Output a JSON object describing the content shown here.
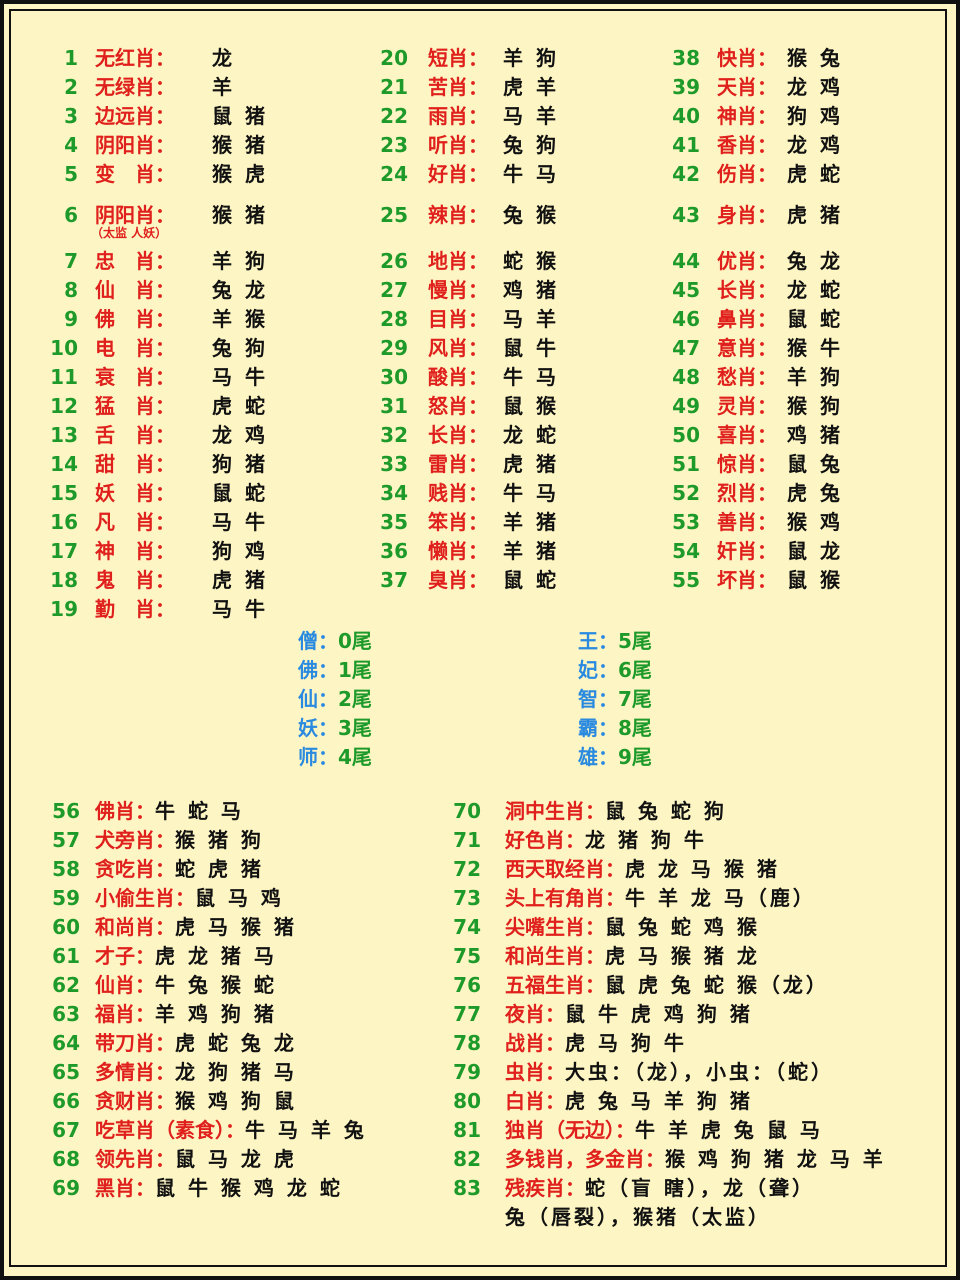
{
  "col1": [
    {
      "num": "1",
      "label": "无红肖：",
      "value": "龙"
    },
    {
      "num": "2",
      "label": "无绿肖：",
      "value": "羊"
    },
    {
      "num": "3",
      "label": "边远肖：",
      "value": "鼠 猪"
    },
    {
      "num": "4",
      "label": "阴阳肖：",
      "value": "猴 猪"
    },
    {
      "num": "5",
      "label": "变　肖：",
      "value": "猴 虎"
    },
    {
      "num": "6",
      "label": "阴阳肖：",
      "value": "猴 猪",
      "note": "（太监 人妖）"
    },
    {
      "num": "7",
      "label": "忠　肖：",
      "value": "羊 狗"
    },
    {
      "num": "8",
      "label": "仙　肖：",
      "value": "兔 龙"
    },
    {
      "num": "9",
      "label": "佛　肖：",
      "value": "羊 猴"
    },
    {
      "num": "10",
      "label": "电　肖：",
      "value": "兔 狗"
    },
    {
      "num": "11",
      "label": "衰　肖：",
      "value": "马 牛"
    },
    {
      "num": "12",
      "label": "猛　肖：",
      "value": "虎 蛇"
    },
    {
      "num": "13",
      "label": "舌　肖：",
      "value": "龙 鸡"
    },
    {
      "num": "14",
      "label": "甜　肖：",
      "value": "狗 猪"
    },
    {
      "num": "15",
      "label": "妖　肖：",
      "value": "鼠 蛇"
    },
    {
      "num": "16",
      "label": "凡　肖：",
      "value": "马 牛"
    },
    {
      "num": "17",
      "label": "神　肖：",
      "value": "狗 鸡"
    },
    {
      "num": "18",
      "label": "鬼　肖：",
      "value": "虎 猪"
    },
    {
      "num": "19",
      "label": "勤　肖：",
      "value": "马 牛"
    }
  ],
  "col2": [
    {
      "num": "20",
      "label": "短肖：",
      "value": "羊 狗"
    },
    {
      "num": "21",
      "label": "苦肖：",
      "value": "虎 羊"
    },
    {
      "num": "22",
      "label": "雨肖：",
      "value": "马 羊"
    },
    {
      "num": "23",
      "label": "听肖：",
      "value": "兔 狗"
    },
    {
      "num": "24",
      "label": "好肖：",
      "value": "牛 马"
    },
    {
      "num": "25",
      "label": "辣肖：",
      "value": "兔 猴"
    },
    {
      "num": "26",
      "label": "地肖：",
      "value": "蛇 猴"
    },
    {
      "num": "27",
      "label": "慢肖：",
      "value": "鸡 猪"
    },
    {
      "num": "28",
      "label": "目肖：",
      "value": "马 羊"
    },
    {
      "num": "29",
      "label": "风肖：",
      "value": "鼠 牛"
    },
    {
      "num": "30",
      "label": "酸肖：",
      "value": "牛 马"
    },
    {
      "num": "31",
      "label": "怒肖：",
      "value": "鼠 猴"
    },
    {
      "num": "32",
      "label": "长肖：",
      "value": "龙 蛇"
    },
    {
      "num": "33",
      "label": "雷肖：",
      "value": "虎 猪"
    },
    {
      "num": "34",
      "label": "贱肖：",
      "value": "牛 马"
    },
    {
      "num": "35",
      "label": "笨肖：",
      "value": "羊 猪"
    },
    {
      "num": "36",
      "label": "懒肖：",
      "value": "羊 猪"
    },
    {
      "num": "37",
      "label": "臭肖：",
      "value": "鼠 蛇"
    }
  ],
  "col3": [
    {
      "num": "38",
      "label": "快肖：",
      "value": "猴 兔"
    },
    {
      "num": "39",
      "label": "天肖：",
      "value": "龙 鸡"
    },
    {
      "num": "40",
      "label": "神肖：",
      "value": "狗 鸡"
    },
    {
      "num": "41",
      "label": "香肖：",
      "value": "龙 鸡"
    },
    {
      "num": "42",
      "label": "伤肖：",
      "value": "虎 蛇"
    },
    {
      "num": "43",
      "label": "身肖：",
      "value": "虎 猪"
    },
    {
      "num": "44",
      "label": "优肖：",
      "value": "兔 龙"
    },
    {
      "num": "45",
      "label": "长肖：",
      "value": "龙 蛇"
    },
    {
      "num": "46",
      "label": "鼻肖：",
      "value": "鼠 蛇"
    },
    {
      "num": "47",
      "label": "意肖：",
      "value": "猴 牛"
    },
    {
      "num": "48",
      "label": "愁肖：",
      "value": "羊 狗"
    },
    {
      "num": "49",
      "label": "灵肖：",
      "value": "猴 狗"
    },
    {
      "num": "50",
      "label": "喜肖：",
      "value": "鸡 猪"
    },
    {
      "num": "51",
      "label": "惊肖：",
      "value": "鼠 兔"
    },
    {
      "num": "52",
      "label": "烈肖：",
      "value": "虎 兔"
    },
    {
      "num": "53",
      "label": "善肖：",
      "value": "猴 鸡"
    },
    {
      "num": "54",
      "label": "奸肖：",
      "value": "鼠 龙"
    },
    {
      "num": "55",
      "label": "坏肖：",
      "value": "鼠 猴"
    }
  ],
  "tails_left": [
    {
      "label": "僧：",
      "value": "0尾"
    },
    {
      "label": "佛：",
      "value": "1尾"
    },
    {
      "label": "仙：",
      "value": "2尾"
    },
    {
      "label": "妖：",
      "value": "3尾"
    },
    {
      "label": "师：",
      "value": "4尾"
    }
  ],
  "tails_right": [
    {
      "label": "王：",
      "value": "5尾"
    },
    {
      "label": "妃：",
      "value": "6尾"
    },
    {
      "label": "智：",
      "value": "7尾"
    },
    {
      "label": "霸：",
      "value": "8尾"
    },
    {
      "label": "雄：",
      "value": "9尾"
    }
  ],
  "bottom_left": [
    {
      "num": "56",
      "label": "佛肖：",
      "value": "牛 蛇 马"
    },
    {
      "num": "57",
      "label": "犬旁肖：",
      "value": "猴 猪 狗"
    },
    {
      "num": "58",
      "label": "贪吃肖：",
      "value": "蛇 虎 猪"
    },
    {
      "num": "59",
      "label": "小偷生肖：",
      "value": "鼠 马 鸡"
    },
    {
      "num": "60",
      "label": "和尚肖：",
      "value": "虎 马 猴 猪"
    },
    {
      "num": "61",
      "label": "才子：",
      "value": "虎 龙 猪 马"
    },
    {
      "num": "62",
      "label": "仙肖：",
      "value": "牛 兔 猴 蛇"
    },
    {
      "num": "63",
      "label": "福肖：",
      "value": "羊 鸡 狗 猪"
    },
    {
      "num": "64",
      "label": "带刀肖：",
      "value": "虎 蛇 兔 龙"
    },
    {
      "num": "65",
      "label": "多情肖：",
      "value": "龙 狗 猪 马"
    },
    {
      "num": "66",
      "label": "贪财肖：",
      "value": "猴 鸡 狗 鼠"
    },
    {
      "num": "67",
      "label": "吃草肖（素食）：",
      "value": "牛 马 羊 兔"
    },
    {
      "num": "68",
      "label": "领先肖：",
      "value": "鼠 马 龙 虎"
    },
    {
      "num": "69",
      "label": "黑肖：",
      "value": "鼠 牛 猴 鸡 龙 蛇"
    }
  ],
  "bottom_right": [
    {
      "num": "70",
      "label": "洞中生肖：",
      "value": "鼠 兔 蛇 狗"
    },
    {
      "num": "71",
      "label": "好色肖：",
      "value": "龙 猪 狗 牛"
    },
    {
      "num": "72",
      "label": "西天取经肖：",
      "value": "虎 龙 马 猴 猪"
    },
    {
      "num": "73",
      "label": "头上有角肖：",
      "value": "牛 羊 龙 马（鹿）"
    },
    {
      "num": "74",
      "label": "尖嘴生肖：",
      "value": "鼠 兔 蛇 鸡 猴"
    },
    {
      "num": "75",
      "label": "和尚生肖：",
      "value": "虎 马 猴 猪 龙"
    },
    {
      "num": "76",
      "label": "五福生肖：",
      "value": "鼠 虎 兔 蛇 猴（龙）"
    },
    {
      "num": "77",
      "label": "夜肖：",
      "value": "鼠 牛 虎 鸡 狗 猪"
    },
    {
      "num": "78",
      "label": "战肖：",
      "value": "虎 马 狗 牛"
    },
    {
      "num": "79",
      "label": "虫肖：",
      "value": "大虫：（龙），小虫：（蛇）"
    },
    {
      "num": "80",
      "label": "白肖：",
      "value": "虎 兔 马 羊 狗 猪"
    },
    {
      "num": "81",
      "label": "独肖（无边）：",
      "value": "牛 羊 虎 兔 鼠 马"
    },
    {
      "num": "82",
      "label": "多钱肖，多金肖：",
      "value": "猴 鸡 狗 猪 龙 马 羊"
    },
    {
      "num": "83",
      "label": "残疾肖：",
      "value": "蛇（盲 瞎），龙（聋）",
      "value2": "兔（唇裂），猴猪（太监）"
    }
  ]
}
